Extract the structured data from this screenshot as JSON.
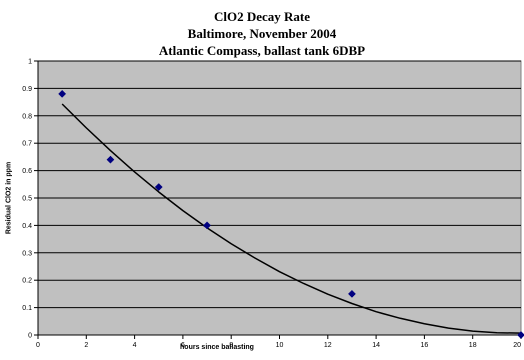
{
  "chart_data": {
    "type": "scatter",
    "title_lines": [
      "ClO2 Decay Rate",
      "Baltimore, November 2004",
      "Atlantic Compass, ballast tank 6DBP"
    ],
    "xlabel": "hours since ballasting",
    "ylabel": "Residual ClO2 in ppm",
    "xlim": [
      0,
      20
    ],
    "ylim": [
      0,
      1
    ],
    "x_ticks": [
      0,
      2,
      4,
      6,
      8,
      10,
      12,
      14,
      16,
      18,
      20
    ],
    "x_tick_labels": [
      "0",
      "2",
      "4",
      "6",
      "8",
      "10",
      "12",
      "14",
      "16",
      "18",
      "20"
    ],
    "y_ticks": [
      0,
      0.1,
      0.2,
      0.3,
      0.4,
      0.5,
      0.6,
      0.7,
      0.8,
      0.9,
      1
    ],
    "y_tick_labels": [
      "0",
      "0.1",
      "0.2",
      "0.3",
      "0.4",
      "0.5",
      "0.6",
      "0.7",
      "0.8",
      "0.9",
      "1"
    ],
    "grid": "horizontal",
    "plot_background": "#c0c0c0",
    "series": [
      {
        "type": "scatter",
        "marker": "diamond",
        "color": "#000080",
        "points": [
          {
            "x": 1,
            "y": 0.88
          },
          {
            "x": 3,
            "y": 0.64
          },
          {
            "x": 5,
            "y": 0.54
          },
          {
            "x": 7,
            "y": 0.4
          },
          {
            "x": 13,
            "y": 0.15
          },
          {
            "x": 20,
            "y": 0.0
          }
        ]
      },
      {
        "type": "line",
        "color": "#000000",
        "points": [
          {
            "x": 1,
            "y": 0.843
          },
          {
            "x": 2,
            "y": 0.756
          },
          {
            "x": 3,
            "y": 0.673
          },
          {
            "x": 4,
            "y": 0.595
          },
          {
            "x": 5,
            "y": 0.522
          },
          {
            "x": 6,
            "y": 0.454
          },
          {
            "x": 7,
            "y": 0.391
          },
          {
            "x": 8,
            "y": 0.333
          },
          {
            "x": 9,
            "y": 0.28
          },
          {
            "x": 10,
            "y": 0.231
          },
          {
            "x": 11,
            "y": 0.188
          },
          {
            "x": 12,
            "y": 0.149
          },
          {
            "x": 13,
            "y": 0.115
          },
          {
            "x": 14,
            "y": 0.085
          },
          {
            "x": 15,
            "y": 0.061
          },
          {
            "x": 16,
            "y": 0.041
          },
          {
            "x": 17,
            "y": 0.025
          },
          {
            "x": 18,
            "y": 0.014
          },
          {
            "x": 19,
            "y": 0.008
          },
          {
            "x": 20,
            "y": 0.007
          }
        ]
      }
    ]
  }
}
